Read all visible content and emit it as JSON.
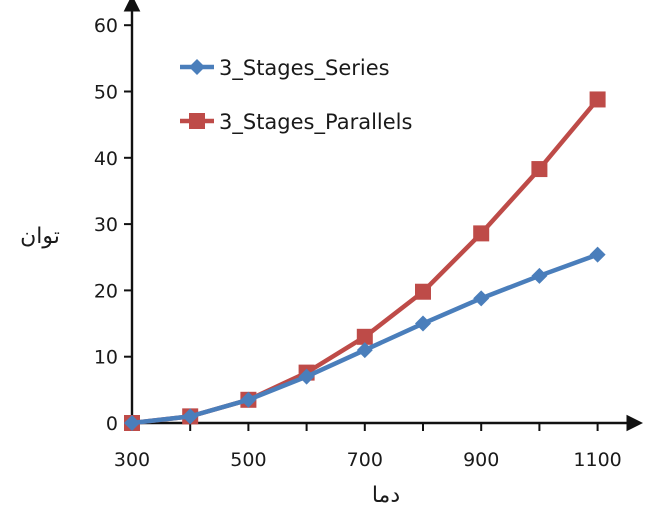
{
  "chart_data": {
    "type": "line",
    "title": "",
    "xlabel": "دما",
    "ylabel": "توان",
    "x": [
      300,
      400,
      500,
      600,
      700,
      800,
      900,
      1000,
      1100
    ],
    "xlim": [
      300,
      1150
    ],
    "ylim": [
      0,
      60
    ],
    "xticks": [
      300,
      500,
      700,
      900,
      1100
    ],
    "yticks": [
      0,
      10,
      20,
      30,
      40,
      50,
      60
    ],
    "grid": false,
    "legend_position": "top-left",
    "series": [
      {
        "name": "3_Stages_Series",
        "color": "#4a7ebb",
        "marker": "diamond",
        "values": [
          0,
          1,
          3.5,
          7,
          11,
          15,
          18.8,
          22.2,
          25.4
        ]
      },
      {
        "name": "3_Stages_Parallels",
        "color": "#be4b48",
        "marker": "square",
        "values": [
          0,
          1,
          3.5,
          7.6,
          13,
          19.8,
          28.6,
          38.3,
          48.8
        ]
      }
    ]
  }
}
